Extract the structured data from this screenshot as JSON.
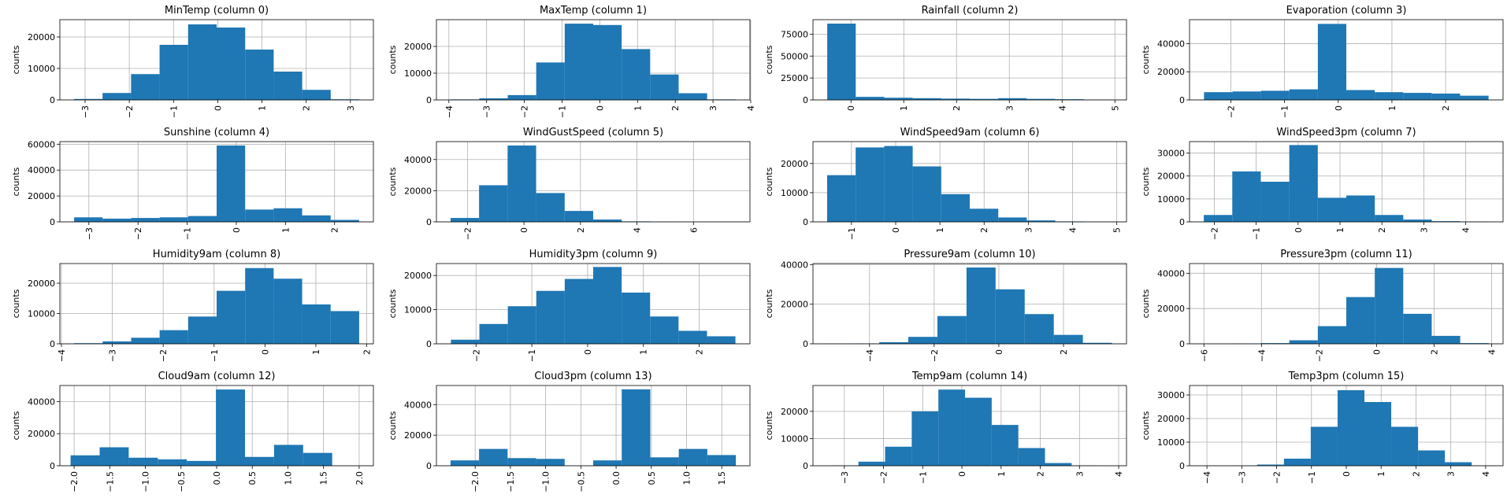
{
  "chart_data": [
    {
      "type": "histogram",
      "title": "MinTemp (column 0)",
      "ylabel": "counts",
      "color": "#1f77b4",
      "grid": true,
      "bins": [
        -3.25,
        -2.605,
        -1.96,
        -1.315,
        -0.67,
        -0.025,
        0.62,
        1.265,
        1.91,
        2.555,
        3.2
      ],
      "counts": [
        300,
        2200,
        8200,
        17500,
        24000,
        23000,
        16000,
        9000,
        3200,
        200
      ],
      "xlim": [
        -3.57,
        3.52
      ],
      "ylim": [
        0,
        25500
      ],
      "xticks": [
        {
          "value": -3,
          "label": "−3"
        },
        {
          "value": -2,
          "label": "−2"
        },
        {
          "value": -1,
          "label": "−1"
        },
        0,
        1,
        2,
        3
      ],
      "yticks": [
        0,
        10000,
        20000
      ]
    },
    {
      "type": "histogram",
      "title": "MaxTemp (column 1)",
      "ylabel": "counts",
      "color": "#1f77b4",
      "grid": true,
      "bins": [
        -3.95,
        -3.195,
        -2.44,
        -1.685,
        -0.93,
        -0.175,
        0.58,
        1.335,
        2.09,
        2.845,
        3.6
      ],
      "counts": [
        200,
        600,
        1800,
        14000,
        28500,
        28000,
        19000,
        9500,
        2500,
        200
      ],
      "xlim": [
        -4.33,
        3.98
      ],
      "ylim": [
        0,
        30000
      ],
      "xticks": [
        {
          "value": -4,
          "label": "−4"
        },
        {
          "value": -3,
          "label": "−3"
        },
        {
          "value": -2,
          "label": "−2"
        },
        {
          "value": -1,
          "label": "−1"
        },
        0,
        1,
        2,
        3,
        4
      ],
      "yticks": [
        0,
        10000,
        20000
      ]
    },
    {
      "type": "histogram",
      "title": "Rainfall (column 2)",
      "ylabel": "counts",
      "color": "#1f77b4",
      "grid": true,
      "bins": [
        -0.45,
        0.09,
        0.63,
        1.17,
        1.71,
        2.25,
        2.79,
        3.33,
        3.87,
        4.41,
        4.95
      ],
      "counts": [
        87000,
        3500,
        2500,
        2000,
        1500,
        1200,
        2000,
        1200,
        800,
        400
      ],
      "xlim": [
        -0.72,
        5.22
      ],
      "ylim": [
        0,
        91500
      ],
      "xticks": [
        0,
        1,
        2,
        3,
        4,
        5
      ],
      "yticks": [
        0,
        25000,
        50000,
        75000
      ]
    },
    {
      "type": "histogram",
      "title": "Evaporation (column 3)",
      "ylabel": "counts",
      "color": "#1f77b4",
      "grid": true,
      "bins": [
        -2.5,
        -1.97,
        -1.44,
        -0.91,
        -0.38,
        0.15,
        0.68,
        1.21,
        1.74,
        2.27,
        2.8
      ],
      "counts": [
        5500,
        6000,
        6500,
        7500,
        54000,
        7000,
        5500,
        5000,
        4500,
        3000
      ],
      "xlim": [
        -2.77,
        3.07
      ],
      "ylim": [
        0,
        57000
      ],
      "xticks": [
        {
          "value": -2,
          "label": "−2"
        },
        {
          "value": -1,
          "label": "−1"
        },
        0,
        1,
        2
      ],
      "yticks": [
        0,
        20000,
        40000
      ]
    },
    {
      "type": "histogram",
      "title": "Sunshine (column 4)",
      "ylabel": "counts",
      "color": "#1f77b4",
      "grid": true,
      "bins": [
        -3.3,
        -2.72,
        -2.14,
        -1.56,
        -0.98,
        -0.4,
        0.18,
        0.76,
        1.34,
        1.92,
        2.5
      ],
      "counts": [
        3500,
        2500,
        3000,
        3500,
        4500,
        59000,
        9500,
        10500,
        5000,
        1500
      ],
      "xlim": [
        -3.59,
        2.79
      ],
      "ylim": [
        0,
        62000
      ],
      "xticks": [
        {
          "value": -3,
          "label": "−3"
        },
        {
          "value": -2,
          "label": "−2"
        },
        {
          "value": -1,
          "label": "−1"
        },
        0,
        1,
        2
      ],
      "yticks": [
        0,
        20000,
        40000,
        60000
      ]
    },
    {
      "type": "histogram",
      "title": "WindGustSpeed (column 5)",
      "ylabel": "counts",
      "color": "#1f77b4",
      "grid": true,
      "bins": [
        -2.6,
        -1.59,
        -0.58,
        0.43,
        1.44,
        2.45,
        3.46,
        4.47,
        5.48,
        6.49,
        7.5
      ],
      "counts": [
        2500,
        23500,
        49000,
        18500,
        7000,
        1500,
        300,
        100,
        50,
        20
      ],
      "xlim": [
        -3.1,
        8.0
      ],
      "ylim": [
        0,
        51500
      ],
      "xticks": [
        {
          "value": -2,
          "label": "−2"
        },
        0,
        2,
        4,
        6
      ],
      "yticks": [
        0,
        20000,
        40000
      ]
    },
    {
      "type": "histogram",
      "title": "WindSpeed9am (column 6)",
      "ylabel": "counts",
      "color": "#1f77b4",
      "grid": true,
      "bins": [
        -1.55,
        -0.905,
        -0.26,
        0.385,
        1.03,
        1.675,
        2.32,
        2.965,
        3.61,
        4.255,
        4.9
      ],
      "counts": [
        16000,
        25500,
        26000,
        19000,
        9500,
        4500,
        1500,
        500,
        150,
        50
      ],
      "xlim": [
        -1.87,
        5.22
      ],
      "ylim": [
        0,
        27500
      ],
      "xticks": [
        {
          "value": -1,
          "label": "−1"
        },
        0,
        1,
        2,
        3,
        4,
        5
      ],
      "yticks": [
        0,
        10000,
        20000
      ]
    },
    {
      "type": "histogram",
      "title": "WindSpeed3pm (column 7)",
      "ylabel": "counts",
      "color": "#1f77b4",
      "grid": true,
      "bins": [
        -2.25,
        -1.57,
        -0.89,
        -0.21,
        0.47,
        1.15,
        1.83,
        2.51,
        3.19,
        3.87,
        4.55
      ],
      "counts": [
        3000,
        22000,
        17500,
        33500,
        10500,
        11500,
        3000,
        1000,
        300,
        100
      ],
      "xlim": [
        -2.59,
        4.89
      ],
      "ylim": [
        0,
        35000
      ],
      "xticks": [
        {
          "value": -2,
          "label": "−2"
        },
        {
          "value": -1,
          "label": "−1"
        },
        0,
        1,
        2,
        3,
        4
      ],
      "yticks": [
        0,
        10000,
        20000,
        30000
      ]
    },
    {
      "type": "histogram",
      "title": "Humidity9am (column 8)",
      "ylabel": "counts",
      "color": "#1f77b4",
      "grid": true,
      "bins": [
        -3.75,
        -3.19,
        -2.63,
        -2.07,
        -1.51,
        -0.95,
        -0.39,
        0.17,
        0.73,
        1.29,
        1.85
      ],
      "counts": [
        200,
        800,
        2000,
        4500,
        9000,
        17500,
        25000,
        21500,
        13000,
        10800
      ],
      "xlim": [
        -4.03,
        2.13
      ],
      "ylim": [
        0,
        26500
      ],
      "xticks": [
        {
          "value": -4,
          "label": "−4"
        },
        {
          "value": -3,
          "label": "−3"
        },
        {
          "value": -2,
          "label": "−2"
        },
        {
          "value": -1,
          "label": "−1"
        },
        0,
        1,
        2
      ],
      "yticks": [
        0,
        10000,
        20000
      ]
    },
    {
      "type": "histogram",
      "title": "Humidity3pm (column 9)",
      "ylabel": "counts",
      "color": "#1f77b4",
      "grid": true,
      "bins": [
        -2.45,
        -1.94,
        -1.43,
        -0.92,
        -0.41,
        0.1,
        0.61,
        1.12,
        1.63,
        2.14,
        2.65
      ],
      "counts": [
        1200,
        5800,
        11000,
        15500,
        19000,
        22500,
        15000,
        8000,
        3800,
        2200
      ],
      "xlim": [
        -2.71,
        2.91
      ],
      "ylim": [
        0,
        23500
      ],
      "xticks": [
        {
          "value": -2,
          "label": "−2"
        },
        {
          "value": -1,
          "label": "−1"
        },
        0,
        1,
        2
      ],
      "yticks": [
        0,
        10000,
        20000
      ]
    },
    {
      "type": "histogram",
      "title": "Pressure9am (column 10)",
      "ylabel": "counts",
      "color": "#1f77b4",
      "grid": true,
      "bins": [
        -5.5,
        -4.6,
        -3.7,
        -2.8,
        -1.9,
        -1.0,
        -0.1,
        0.8,
        1.7,
        2.6,
        3.5
      ],
      "counts": [
        50,
        200,
        800,
        3500,
        14000,
        38500,
        27500,
        15000,
        4500,
        500
      ],
      "xlim": [
        -5.75,
        3.95
      ],
      "ylim": [
        0,
        40500
      ],
      "xticks": [
        {
          "value": -4,
          "label": "−4"
        },
        {
          "value": -2,
          "label": "−2"
        },
        0,
        2
      ],
      "yticks": [
        0,
        20000,
        40000
      ]
    },
    {
      "type": "histogram",
      "title": "Pressure3pm (column 11)",
      "ylabel": "counts",
      "color": "#1f77b4",
      "grid": true,
      "bins": [
        -6,
        -5.01,
        -4.02,
        -3.03,
        -2.04,
        -1.05,
        -0.06,
        0.93,
        1.92,
        2.91,
        3.9
      ],
      "counts": [
        30,
        100,
        400,
        2000,
        10000,
        26500,
        43000,
        17000,
        4500,
        400
      ],
      "xlim": [
        -6.5,
        4.4
      ],
      "ylim": [
        0,
        45500
      ],
      "xticks": [
        {
          "value": -6,
          "label": "−6"
        },
        {
          "value": -4,
          "label": "−4"
        },
        {
          "value": -2,
          "label": "−2"
        },
        0,
        2,
        4
      ],
      "yticks": [
        0,
        20000,
        40000
      ]
    },
    {
      "type": "histogram",
      "title": "Cloud9am (column 12)",
      "ylabel": "counts",
      "color": "#1f77b4",
      "grid": true,
      "bins": [
        -2.05,
        -1.642,
        -1.234,
        -0.826,
        -0.418,
        -0.01,
        0.398,
        0.806,
        1.214,
        1.622
      ],
      "counts": [
        6500,
        11500,
        5000,
        4000,
        3000,
        47500,
        5500,
        13000,
        8000
      ],
      "xlim": [
        -2.2,
        2.2
      ],
      "ylim": [
        0,
        50000
      ],
      "xticks": [
        {
          "value": -2.0,
          "label": "−2.0"
        },
        {
          "value": -1.5,
          "label": "−1.5"
        },
        {
          "value": -1.0,
          "label": "−1.0"
        },
        {
          "value": -0.5,
          "label": "−0.5"
        },
        {
          "value": 0,
          "label": "0.0"
        },
        0.5,
        {
          "value": 1,
          "label": "1.0"
        },
        1.5,
        {
          "value": 2,
          "label": "2.0"
        }
      ],
      "yticks": [
        0,
        20000,
        40000
      ]
    },
    {
      "type": "histogram",
      "title": "Cloud3pm (column 13)",
      "ylabel": "counts",
      "color": "#1f77b4",
      "grid": true,
      "bins": [
        -2.35,
        -1.945,
        -1.54,
        -1.135,
        -0.73,
        -0.325,
        0.08,
        0.485,
        0.89,
        1.295,
        1.7
      ],
      "counts": [
        3500,
        11000,
        5000,
        4500,
        0,
        3500,
        50000,
        5500,
        11000,
        7000
      ],
      "xlim": [
        -2.55,
        1.9
      ],
      "ylim": [
        0,
        52500
      ],
      "xticks": [
        {
          "value": -2.0,
          "label": "−2.0"
        },
        {
          "value": -1.5,
          "label": "−1.5"
        },
        {
          "value": -1.0,
          "label": "−1.0"
        },
        {
          "value": -0.5,
          "label": "−0.5"
        },
        {
          "value": 0,
          "label": "0.0"
        },
        0.5,
        {
          "value": 1,
          "label": "1.0"
        },
        1.5
      ],
      "yticks": [
        0,
        20000,
        40000
      ]
    },
    {
      "type": "histogram",
      "title": "Temp9am (column 14)",
      "ylabel": "counts",
      "color": "#1f77b4",
      "grid": true,
      "bins": [
        -3.32,
        -2.64,
        -1.96,
        -1.28,
        -0.6,
        0.08,
        0.76,
        1.44,
        2.12,
        2.8,
        3.48
      ],
      "counts": [
        100,
        1500,
        7000,
        20000,
        28000,
        25000,
        15000,
        6500,
        1000,
        100
      ],
      "xlim": [
        -3.8,
        4.2
      ],
      "ylim": [
        0,
        29500
      ],
      "xticks": [
        {
          "value": -3,
          "label": "−3"
        },
        {
          "value": -2,
          "label": "−2"
        },
        {
          "value": -1,
          "label": "−1"
        },
        0,
        1,
        2,
        3,
        4
      ],
      "yticks": [
        0,
        10000,
        20000
      ]
    },
    {
      "type": "histogram",
      "title": "Temp3pm (column 15)",
      "ylabel": "counts",
      "color": "#1f77b4",
      "grid": true,
      "bins": [
        -3.33,
        -2.56,
        -1.79,
        -1.02,
        -0.25,
        0.52,
        1.29,
        2.06,
        2.83,
        3.6,
        4.37
      ],
      "counts": [
        50,
        500,
        3000,
        16500,
        32000,
        27000,
        16500,
        6500,
        1500,
        50
      ],
      "xlim": [
        -4.5,
        4.5
      ],
      "ylim": [
        0,
        34000
      ],
      "xticks": [
        {
          "value": -4,
          "label": "−4"
        },
        {
          "value": -3,
          "label": "−3"
        },
        {
          "value": -2,
          "label": "−2"
        },
        {
          "value": -1,
          "label": "−1"
        },
        0,
        1,
        2,
        3,
        4
      ],
      "yticks": [
        0,
        10000,
        20000,
        30000
      ]
    }
  ]
}
